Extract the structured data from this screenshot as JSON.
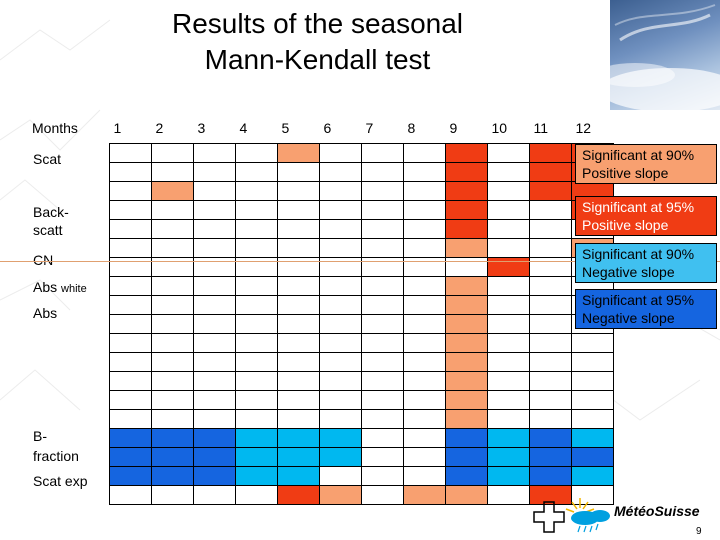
{
  "title": {
    "line1": "Results of the seasonal",
    "line2": "Mann-Kendall test"
  },
  "colors": {
    "empty": "#ffffff",
    "red": "#ff0000",
    "dark_orange": "#f03c14",
    "orange": "#f89860",
    "light_orange": "#f8a070",
    "blue": "#1565e0",
    "sky": "#00b8f0",
    "light_blue": "#40c0f0"
  },
  "table": {
    "months": [
      "1",
      "2",
      "3",
      "4",
      "5",
      "6",
      "7",
      "8",
      "9",
      "10",
      "11",
      "12"
    ],
    "row_labels": [
      "Months",
      "Scat",
      "Back-\nscatt",
      "CN",
      "Abs",
      "white",
      "Abs",
      "B-\nfraction",
      "Scat exp"
    ],
    "rows": [
      {
        "label": "Scat",
        "cells": [
          "",
          "",
          "",
          "",
          "o",
          "",
          "",
          "",
          "r",
          "",
          "r",
          "r"
        ]
      },
      {
        "label": "",
        "cells": [
          "",
          "",
          "",
          "",
          "",
          "",
          "",
          "",
          "r",
          "",
          "r",
          "r"
        ]
      },
      {
        "label": "",
        "cells": [
          "",
          "o",
          "",
          "",
          "",
          "",
          "",
          "",
          "r",
          "",
          "r",
          "r"
        ]
      },
      {
        "label": "",
        "cells": [
          "",
          "",
          "",
          "",
          "",
          "",
          "",
          "",
          "r",
          "",
          "",
          "r"
        ]
      },
      {
        "label": "Back-scatt",
        "cells": [
          "",
          "",
          "",
          "",
          "",
          "",
          "",
          "",
          "r",
          "",
          "",
          ""
        ]
      },
      {
        "label": "",
        "cells": [
          "",
          "",
          "",
          "",
          "",
          "",
          "",
          "",
          "o",
          "",
          "",
          "o"
        ]
      },
      {
        "label": "CN",
        "cells": [
          "",
          "",
          "",
          "",
          "",
          "",
          "",
          "",
          "",
          "r",
          "",
          ""
        ]
      },
      {
        "label": "Abs white",
        "cells": [
          "",
          "",
          "",
          "",
          "",
          "",
          "",
          "",
          "o",
          "",
          "",
          ""
        ]
      },
      {
        "label": "",
        "cells": [
          "",
          "",
          "",
          "",
          "",
          "",
          "",
          "",
          "o",
          "",
          "",
          ""
        ]
      },
      {
        "label": "Abs",
        "cells": [
          "",
          "",
          "",
          "",
          "",
          "",
          "",
          "",
          "o",
          "",
          "",
          ""
        ]
      },
      {
        "label": "",
        "cells": [
          "",
          "",
          "",
          "",
          "",
          "",
          "",
          "",
          "o",
          "",
          "",
          ""
        ]
      },
      {
        "label": "",
        "cells": [
          "",
          "",
          "",
          "",
          "",
          "",
          "",
          "",
          "o",
          "",
          "",
          ""
        ]
      },
      {
        "label": "",
        "cells": [
          "",
          "",
          "",
          "",
          "",
          "",
          "",
          "",
          "o",
          "",
          "",
          ""
        ]
      },
      {
        "label": "",
        "cells": [
          "",
          "",
          "",
          "",
          "",
          "",
          "",
          "",
          "o",
          "",
          "",
          ""
        ]
      },
      {
        "label": "",
        "cells": [
          "",
          "",
          "",
          "",
          "",
          "",
          "",
          "",
          "o",
          "",
          "",
          ""
        ]
      },
      {
        "label": "B-fraction",
        "cells": [
          "b",
          "b",
          "b",
          "s",
          "s",
          "s",
          "",
          "",
          "b",
          "s",
          "b",
          "s"
        ]
      },
      {
        "label": "",
        "cells": [
          "b",
          "b",
          "b",
          "s",
          "s",
          "s",
          "",
          "",
          "b",
          "s",
          "b",
          "b"
        ]
      },
      {
        "label": "",
        "cells": [
          "b",
          "b",
          "b",
          "s",
          "s",
          "",
          "",
          "",
          "b",
          "s",
          "b",
          "s"
        ]
      },
      {
        "label": "Scat exp",
        "cells": [
          "",
          "",
          "",
          "",
          "r",
          "o",
          "",
          "o",
          "o",
          "",
          "r",
          ""
        ]
      }
    ]
  },
  "labels": {
    "months": "Months",
    "scat": "Scat",
    "backscatt_1": "Back-",
    "backscatt_2": "scatt",
    "cn": "CN",
    "abs_white_a": "Abs ",
    "abs_white_b": "white",
    "abs": "Abs",
    "bfraction_1": "B-",
    "bfraction_2": "fraction",
    "scat_exp": "Scat exp"
  },
  "legend": [
    {
      "line1": "Significant at 90%",
      "line2": "Positive slope",
      "bg": "#f8a070",
      "fg": "#000000"
    },
    {
      "line1": "Significant at 95%",
      "line2": "Positive slope",
      "bg": "#f03c14",
      "fg": "#ffffff"
    },
    {
      "line1": "Significant at 90%",
      "line2": "Negative slope",
      "bg": "#40c0f0",
      "fg": "#000000"
    },
    {
      "line1": "Significant at 95%",
      "line2": "Negative slope",
      "bg": "#1565e0",
      "fg": "#000000"
    }
  ],
  "logo": {
    "name": "MétéoSuisse"
  },
  "page_number": "9"
}
